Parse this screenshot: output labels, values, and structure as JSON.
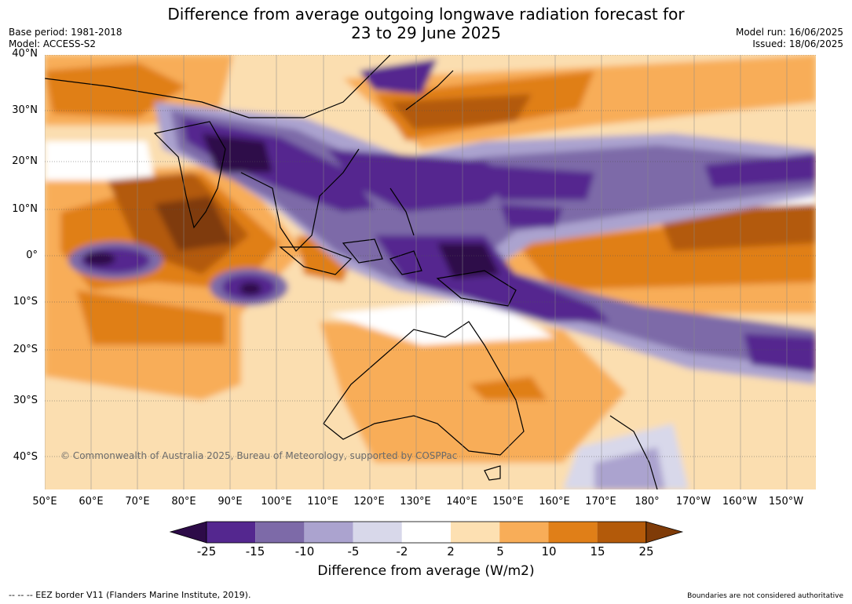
{
  "title_line1": "Difference from average outgoing longwave radiation forecast for",
  "title_line2": "23 to 29 June 2025",
  "base_period": "Base period: 1981-2018",
  "model": "Model: ACCESS-S2",
  "model_run": "Model run: 16/06/2025",
  "issued": "Issued: 18/06/2025",
  "lat_labels": [
    "40°N",
    "30°N",
    "20°N",
    "10°N",
    "0°",
    "10°S",
    "20°S",
    "30°S",
    "40°S"
  ],
  "lon_labels": [
    "50°E",
    "60°E",
    "70°E",
    "80°E",
    "90°E",
    "100°E",
    "110°E",
    "120°E",
    "130°E",
    "140°E",
    "150°E",
    "160°E",
    "170°E",
    "180°",
    "170°W",
    "160°W",
    "150°W"
  ],
  "copyright": "© Commonwealth of Australia 2025, Bureau of Meteorology, supported by COSPPac",
  "colorbar": {
    "ticks": [
      "-25",
      "-15",
      "-10",
      "-5",
      "-2",
      "2",
      "5",
      "10",
      "15",
      "25"
    ],
    "colors": [
      "#2d0b48",
      "#54278f",
      "#7d6aa8",
      "#aba3cf",
      "#d8d8ea",
      "#ffffff",
      "#fde0b2",
      "#f8ad58",
      "#e07f18",
      "#b35a0a",
      "#7f3b08"
    ],
    "label": "Difference from average (W/m2)"
  },
  "footer_left": "--  --  -- EEZ border V11 (Flanders Marine Institute, 2019).",
  "footer_right": "Boundaries are not considered authoritative"
}
